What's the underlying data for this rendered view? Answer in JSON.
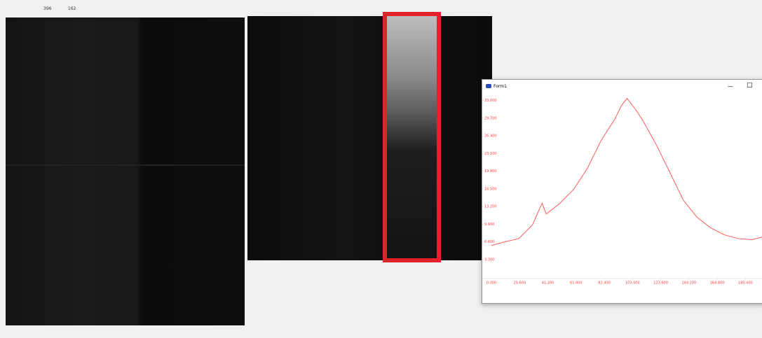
{
  "top_labels": [
    "396",
    "162"
  ],
  "window": {
    "title": "Form1",
    "minimize": "—",
    "maximize": "□"
  },
  "chart_data": {
    "type": "line",
    "color": "#ff5a5a",
    "x": [
      0,
      10,
      20,
      30,
      37,
      40,
      50,
      60,
      70,
      80,
      90,
      95,
      99,
      105,
      110,
      120,
      130,
      140,
      150,
      160,
      170,
      180,
      190,
      198
    ],
    "values": [
      5.9,
      6.6,
      7.2,
      9.8,
      13.8,
      11.8,
      13.8,
      16.4,
      20.3,
      25.5,
      29.5,
      32.1,
      33.4,
      31.4,
      29.5,
      24.9,
      19.7,
      14.4,
      11.2,
      9.2,
      7.9,
      7.2,
      7.0,
      7.5
    ],
    "xlim": [
      0,
      198
    ],
    "ylim": [
      0,
      34
    ],
    "xticks": [
      {
        "value": 0,
        "label": "0.000"
      },
      {
        "value": 20.6,
        "label": "20.600"
      },
      {
        "value": 41.2,
        "label": "41.200"
      },
      {
        "value": 61.8,
        "label": "61.800"
      },
      {
        "value": 82.4,
        "label": "82.400"
      },
      {
        "value": 103,
        "label": "103.000"
      },
      {
        "value": 123.6,
        "label": "123.600"
      },
      {
        "value": 144.2,
        "label": "144.200"
      },
      {
        "value": 164.8,
        "label": "164.800"
      },
      {
        "value": 185.4,
        "label": "185.400"
      }
    ],
    "yticks": [
      {
        "value": 3.3,
        "label": "3.300"
      },
      {
        "value": 6.6,
        "label": "6.600"
      },
      {
        "value": 9.9,
        "label": "9.900"
      },
      {
        "value": 13.2,
        "label": "13.200"
      },
      {
        "value": 16.5,
        "label": "16.500"
      },
      {
        "value": 19.8,
        "label": "19.800"
      },
      {
        "value": 23.1,
        "label": "23.100"
      },
      {
        "value": 26.4,
        "label": "26.400"
      },
      {
        "value": 29.7,
        "label": "29.700"
      },
      {
        "value": 33,
        "label": "33.000"
      }
    ]
  }
}
